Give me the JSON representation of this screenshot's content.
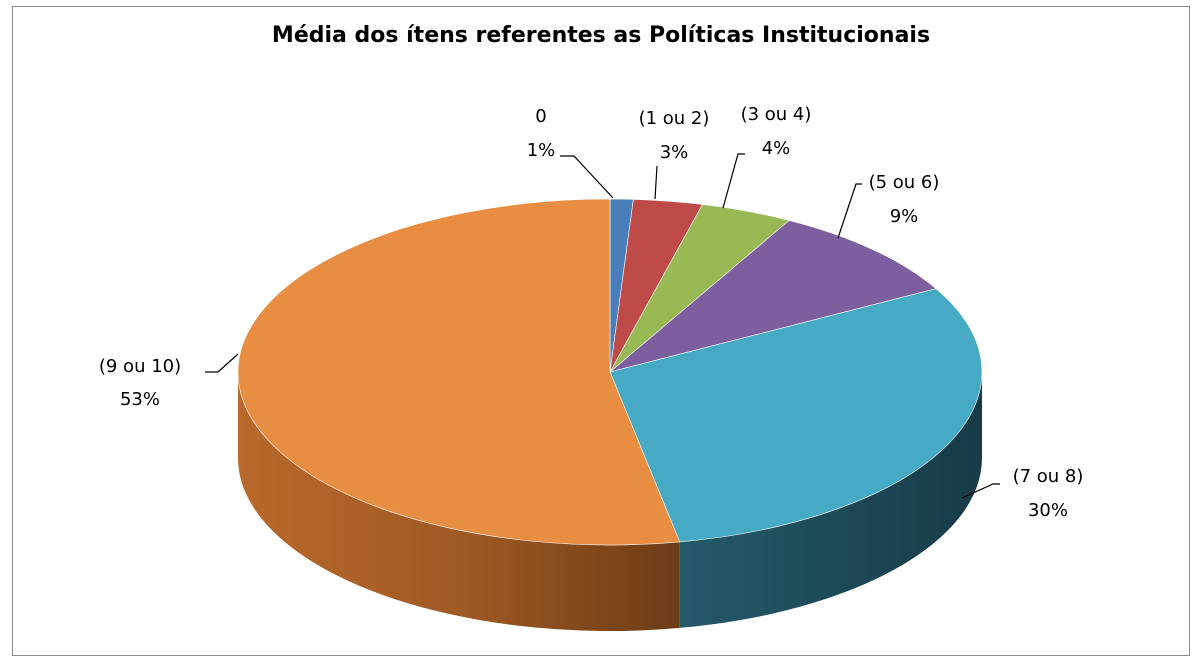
{
  "chart_data": {
    "type": "pie",
    "title": "Média dos ítens referentes as Políticas Institucionais",
    "categories": [
      "0",
      "(1 ou 2)",
      "(3 ou 4)",
      "(5 ou 6)",
      "(7 ou 8)",
      "(9 ou 10)"
    ],
    "values": [
      1,
      3,
      4,
      9,
      30,
      53
    ],
    "value_labels": [
      "1%",
      "3%",
      "4%",
      "9%",
      "30%",
      "53%"
    ],
    "colors": [
      "#4a7ebb",
      "#be4b48",
      "#98b954",
      "#7d5fa0",
      "#46aac4",
      "#e88e42"
    ],
    "style": "3d-pie",
    "legend": "none"
  }
}
